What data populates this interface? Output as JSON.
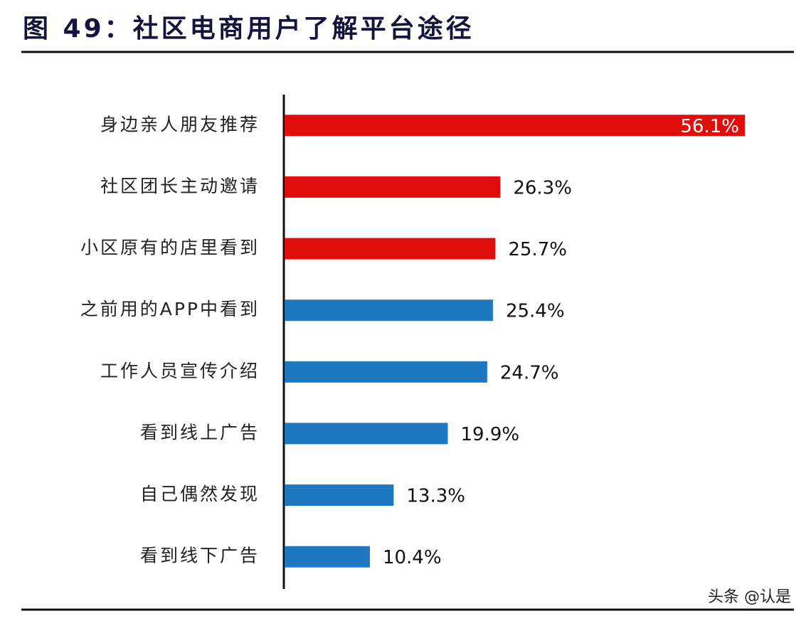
{
  "chart_data": {
    "type": "barh",
    "title": "图 49：社区电商用户了解平台途径",
    "categories": [
      "身边亲人朋友推荐",
      "社区团长主动邀请",
      "小区原有的店里看到",
      "之前用的APP中看到",
      "工作人员宣传介绍",
      "看到线上广告",
      "自己偶然发现",
      "看到线下广告"
    ],
    "values": [
      56.1,
      26.3,
      25.7,
      25.4,
      24.7,
      19.9,
      13.3,
      10.4
    ],
    "value_labels": [
      "56.1%",
      "26.3%",
      "25.7%",
      "25.4%",
      "24.7%",
      "19.9%",
      "13.3%",
      "10.4%"
    ],
    "colors": [
      "#e00d0d",
      "#e00d0d",
      "#e00d0d",
      "#1f77c0",
      "#1f77c0",
      "#1f77c0",
      "#1f77c0",
      "#1f77c0"
    ],
    "watermark": "头条 @认是"
  }
}
